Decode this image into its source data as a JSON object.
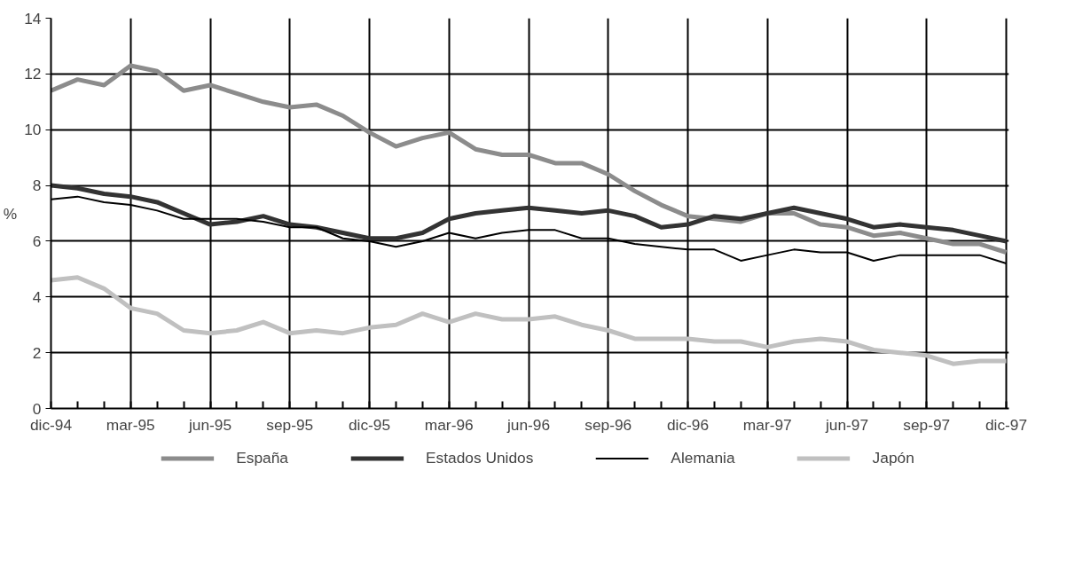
{
  "chart_data": {
    "type": "line",
    "ylabel": "%",
    "categories": [
      "dic-94",
      null,
      null,
      "mar-95",
      null,
      null,
      "jun-95",
      null,
      null,
      "sep-95",
      null,
      null,
      "dic-95",
      null,
      null,
      "mar-96",
      null,
      null,
      "jun-96",
      null,
      null,
      "sep-96",
      null,
      null,
      "dic-96",
      null,
      null,
      "mar-97",
      null,
      null,
      "jun-97",
      null,
      null,
      "sep-97",
      null,
      null,
      "dic-97"
    ],
    "series": [
      {
        "name": "España",
        "color": "#8c8c8c",
        "values": [
          11.4,
          11.8,
          11.6,
          12.3,
          12.1,
          11.4,
          11.6,
          11.3,
          11.0,
          10.8,
          10.9,
          10.5,
          9.9,
          9.4,
          9.7,
          9.9,
          9.3,
          9.1,
          9.1,
          8.8,
          8.8,
          8.4,
          7.8,
          7.3,
          6.9,
          6.8,
          6.7,
          7.0,
          7.0,
          6.6,
          6.5,
          6.2,
          6.3,
          6.1,
          5.9,
          5.9,
          5.6
        ]
      },
      {
        "name": "Estados Unidos",
        "color": "#333333",
        "values": [
          8.0,
          7.9,
          7.7,
          7.6,
          7.4,
          7.0,
          6.6,
          6.7,
          6.9,
          6.6,
          6.5,
          6.3,
          6.1,
          6.1,
          6.3,
          6.8,
          7.0,
          7.1,
          7.2,
          7.1,
          7.0,
          7.1,
          6.9,
          6.5,
          6.6,
          6.9,
          6.8,
          7.0,
          7.2,
          7.0,
          6.8,
          6.5,
          6.6,
          6.5,
          6.4,
          6.2,
          6.0
        ]
      },
      {
        "name": "Alemania",
        "color": "#000000",
        "values": [
          7.5,
          7.6,
          7.4,
          7.3,
          7.1,
          6.8,
          6.8,
          6.8,
          6.7,
          6.5,
          6.5,
          6.1,
          6.0,
          5.8,
          6.0,
          6.3,
          6.1,
          6.3,
          6.4,
          6.4,
          6.1,
          6.1,
          5.9,
          5.8,
          5.7,
          5.7,
          5.3,
          5.5,
          5.7,
          5.6,
          5.6,
          5.3,
          5.5,
          5.5,
          5.5,
          5.5,
          5.2
        ]
      },
      {
        "name": "Japón",
        "color": "#c0c0c0",
        "values": [
          4.6,
          4.7,
          4.3,
          3.6,
          3.4,
          2.8,
          2.7,
          2.8,
          3.1,
          2.7,
          2.8,
          2.7,
          2.9,
          3.0,
          3.4,
          3.1,
          3.4,
          3.2,
          3.2,
          3.3,
          3.0,
          2.8,
          2.5,
          2.5,
          2.5,
          2.4,
          2.4,
          2.2,
          2.4,
          2.5,
          2.4,
          2.1,
          2.0,
          1.9,
          1.6,
          1.7,
          1.7
        ]
      }
    ],
    "ylim": [
      0,
      14
    ],
    "yticks": [
      0,
      2,
      4,
      6,
      8,
      10,
      12,
      14
    ],
    "grid": true,
    "legend": "bottom",
    "line_style": "solid",
    "marker": "none"
  }
}
